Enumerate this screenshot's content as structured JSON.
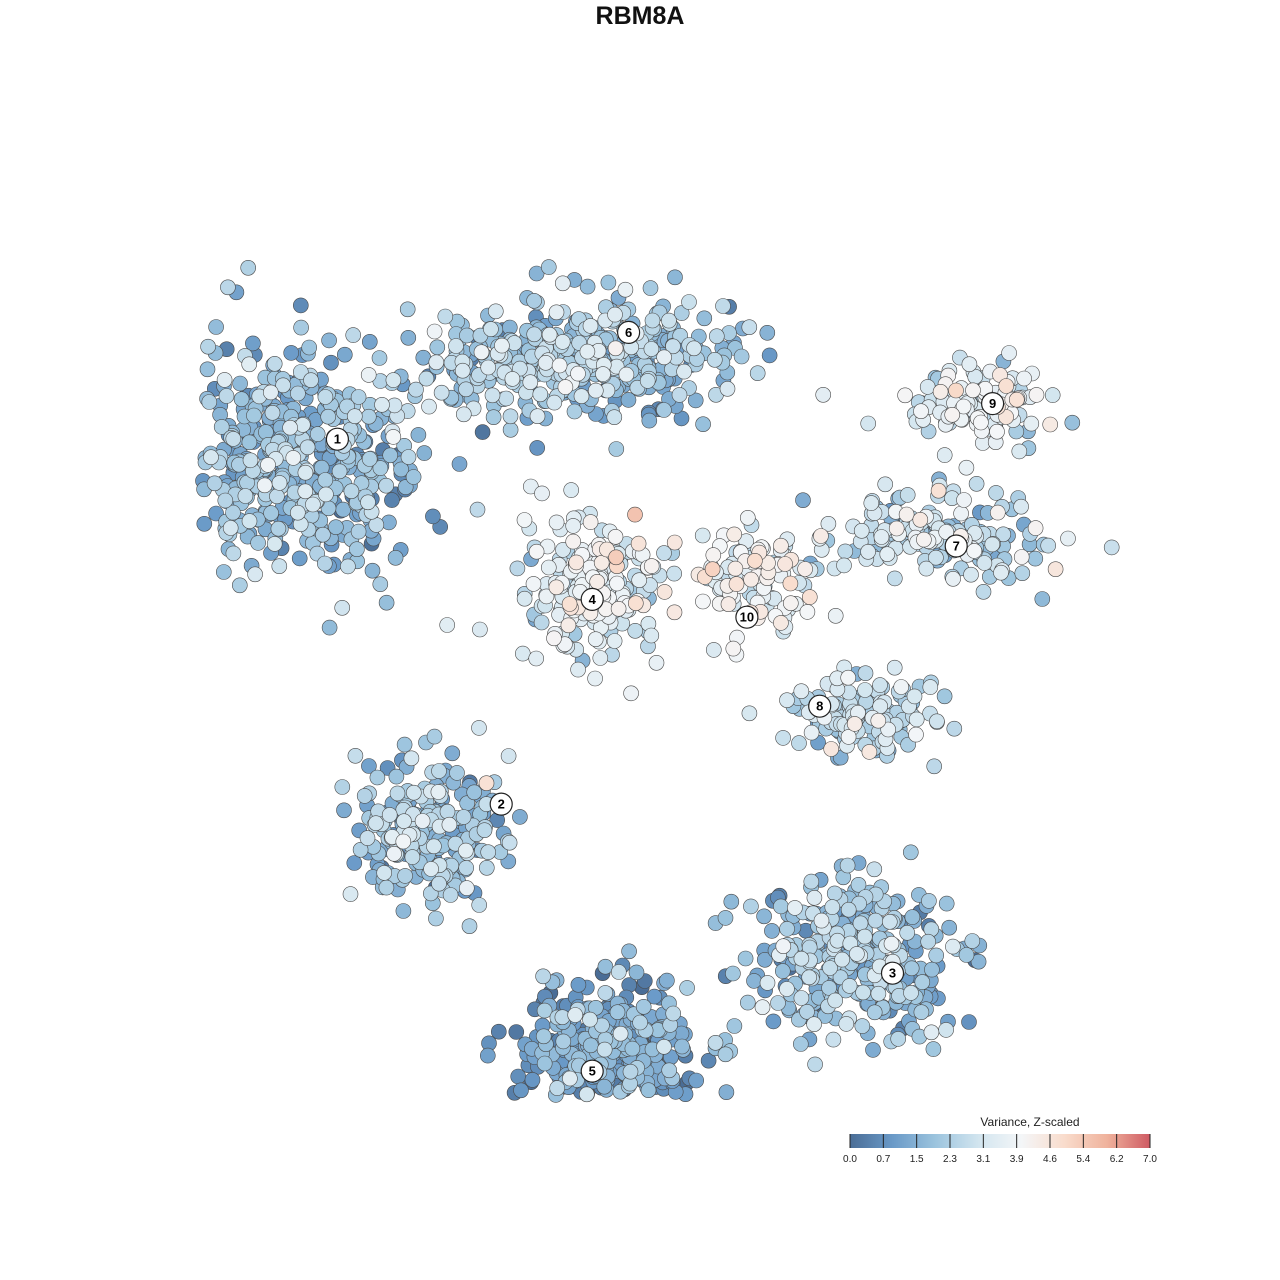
{
  "title": "RBM8A",
  "chart_data": {
    "type": "scatter",
    "title": "RBM8A",
    "xlabel": "",
    "ylabel": "",
    "grid": false,
    "legend_placement": "bottom-right",
    "color_scale": {
      "title": "Variance, Z-scaled",
      "range": [
        0.0,
        7.0
      ],
      "ticks": [
        "0.0",
        "0.7",
        "1.5",
        "2.3",
        "3.1",
        "3.9",
        "4.6",
        "5.4",
        "6.2",
        "7.0"
      ],
      "colors": [
        "#4a6d96",
        "#6a9ac8",
        "#9cc4de",
        "#d2e5ef",
        "#f4f6f8",
        "#f9dccc",
        "#efb29c",
        "#cf5a63"
      ]
    },
    "clusters": [
      {
        "label": "1",
        "x": 0.14,
        "y": 0.72,
        "cx": 0.1,
        "cy": 0.7,
        "sx": 0.12,
        "sy": 0.12,
        "mean": 1.8,
        "n": 520
      },
      {
        "label": "6",
        "x": 0.46,
        "y": 0.84,
        "cx": 0.4,
        "cy": 0.81,
        "sx": 0.15,
        "sy": 0.06,
        "mean": 2.1,
        "n": 480
      },
      {
        "label": "4",
        "x": 0.42,
        "y": 0.54,
        "cx": 0.42,
        "cy": 0.55,
        "sx": 0.07,
        "sy": 0.08,
        "mean": 3.3,
        "n": 230
      },
      {
        "label": "10",
        "x": 0.59,
        "y": 0.52,
        "cx": 0.6,
        "cy": 0.56,
        "sx": 0.06,
        "sy": 0.06,
        "mean": 3.6,
        "n": 110
      },
      {
        "label": "9",
        "x": 0.86,
        "y": 0.76,
        "cx": 0.84,
        "cy": 0.76,
        "sx": 0.07,
        "sy": 0.04,
        "mean": 3.3,
        "n": 120
      },
      {
        "label": "7",
        "x": 0.82,
        "y": 0.6,
        "cx": 0.8,
        "cy": 0.61,
        "sx": 0.11,
        "sy": 0.05,
        "mean": 2.7,
        "n": 190
      },
      {
        "label": "8",
        "x": 0.67,
        "y": 0.42,
        "cx": 0.72,
        "cy": 0.41,
        "sx": 0.07,
        "sy": 0.04,
        "mean": 2.6,
        "n": 150
      },
      {
        "label": "2",
        "x": 0.32,
        "y": 0.31,
        "cx": 0.24,
        "cy": 0.28,
        "sx": 0.08,
        "sy": 0.07,
        "mean": 2.0,
        "n": 230
      },
      {
        "label": "3",
        "x": 0.75,
        "y": 0.12,
        "cx": 0.71,
        "cy": 0.14,
        "sx": 0.1,
        "sy": 0.08,
        "mean": 1.9,
        "n": 330
      },
      {
        "label": "5",
        "x": 0.42,
        "y": 0.01,
        "cx": 0.44,
        "cy": 0.03,
        "sx": 0.09,
        "sy": 0.07,
        "mean": 1.3,
        "n": 420
      }
    ]
  }
}
